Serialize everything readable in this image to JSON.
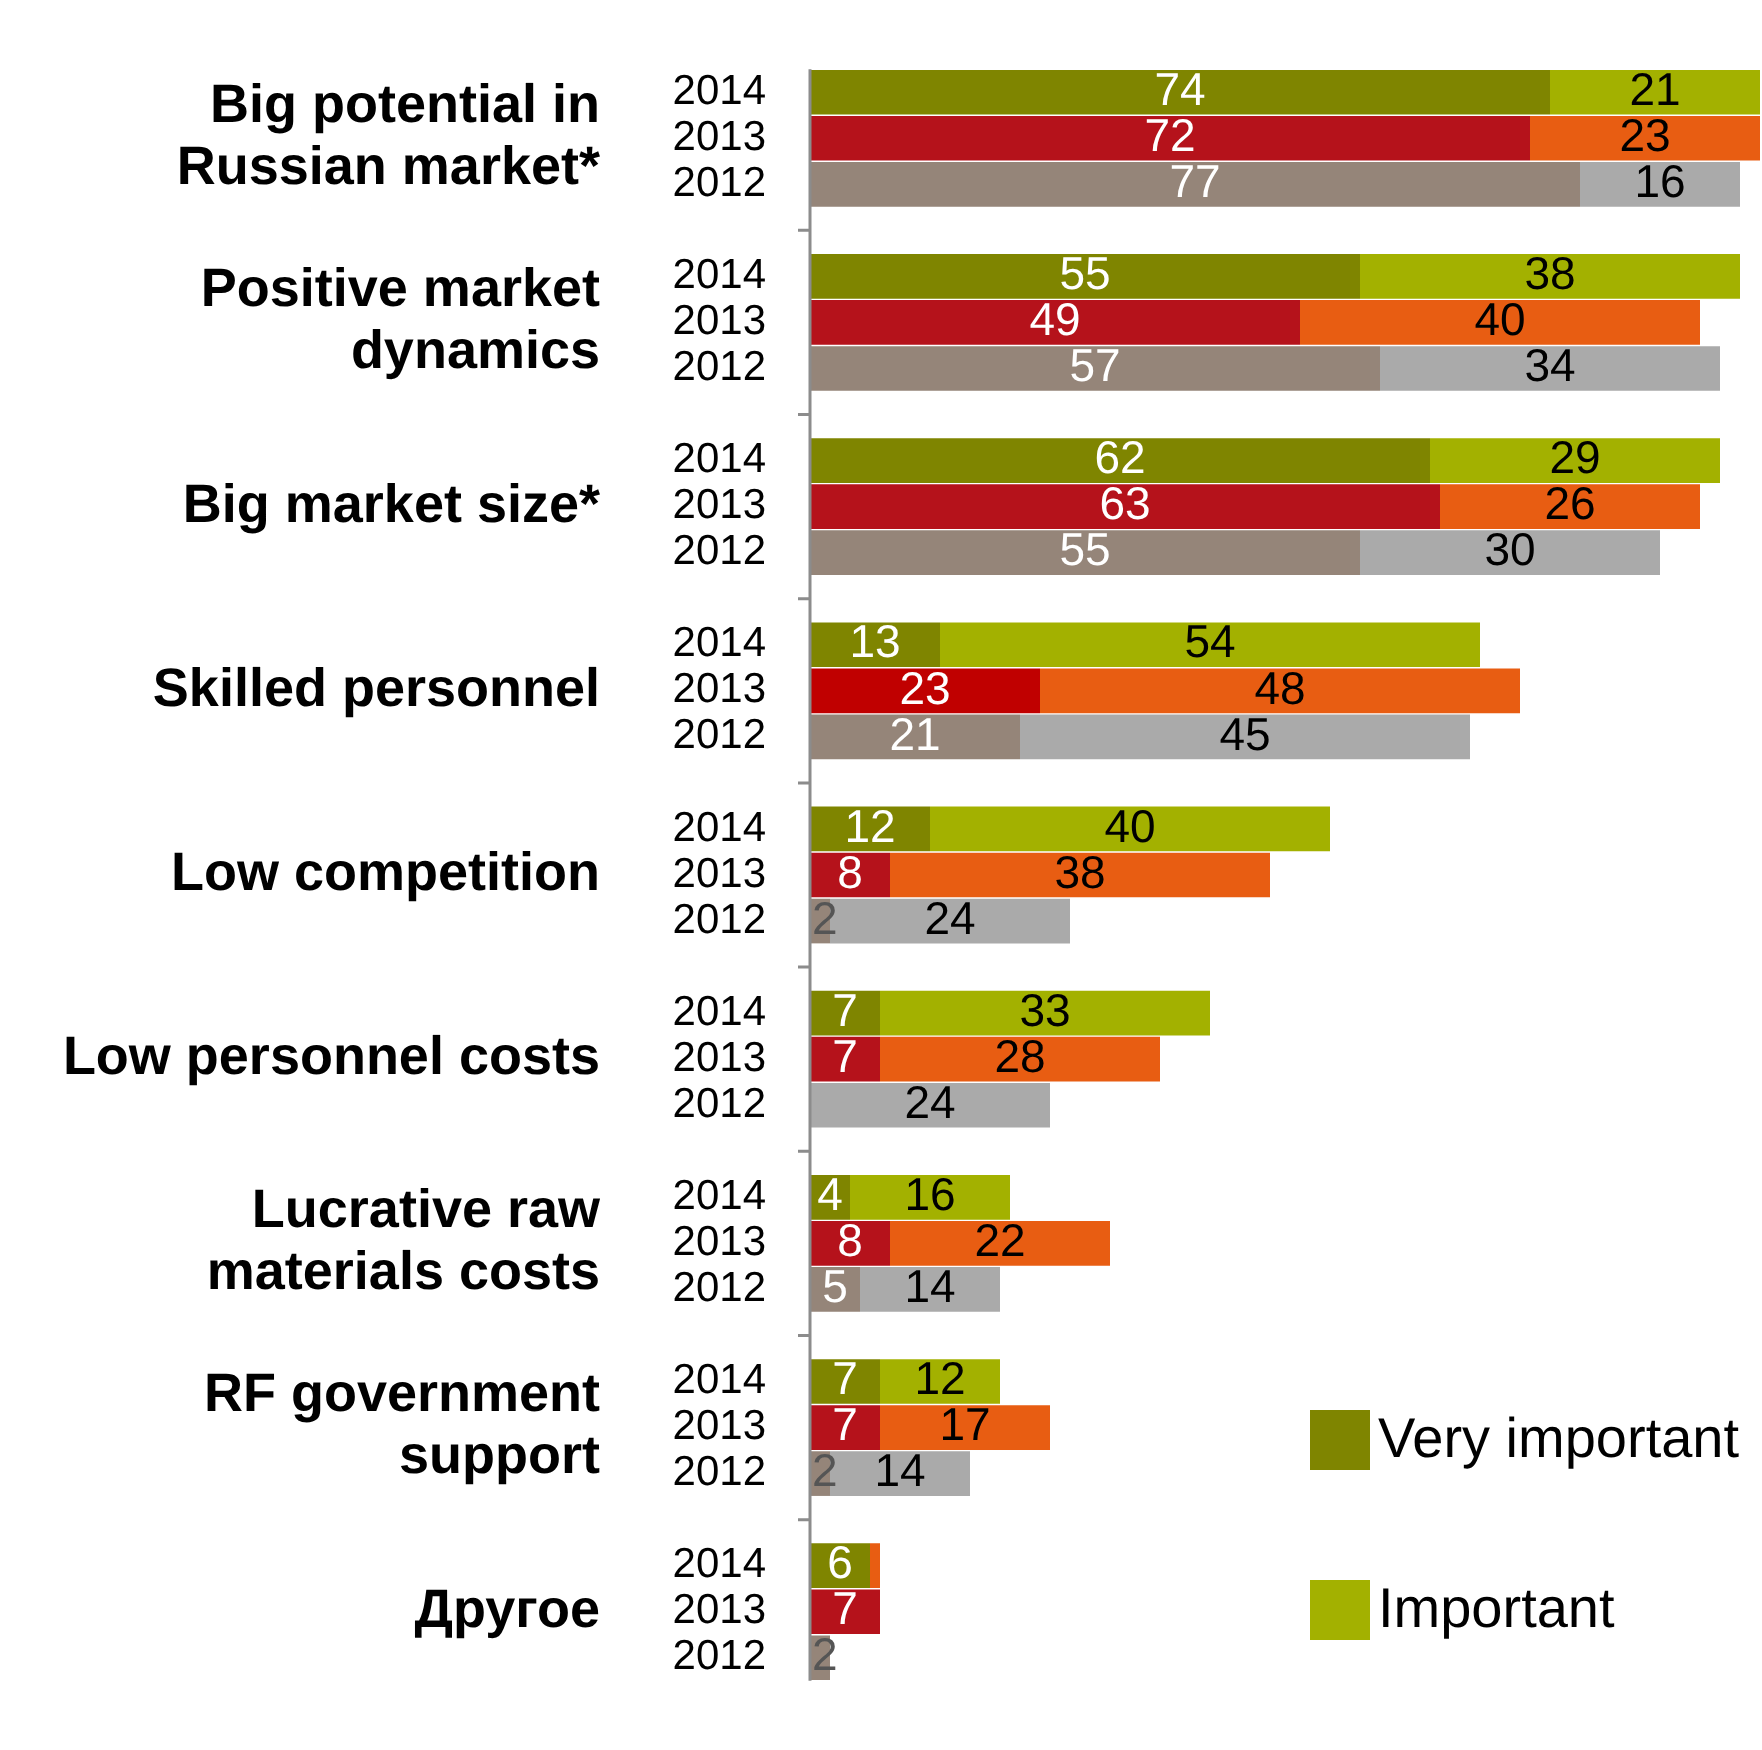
{
  "chart_data": {
    "type": "bar",
    "orientation": "horizontal",
    "stacked": true,
    "legend": "bottom right",
    "categories": [
      "2014",
      "2013",
      "2012",
      null,
      "2014",
      "2013",
      "2012",
      null,
      "2014",
      "2013",
      "2012",
      null,
      "2014",
      "2013",
      "2012",
      null,
      "2014",
      "2013",
      "2012",
      null,
      "2014",
      "2013",
      "2012",
      null,
      "2014",
      "2013",
      "2012",
      null,
      "2014",
      "2013",
      "2012",
      null,
      "2014",
      "2013",
      "2012"
    ],
    "annotations": [
      "Big potential in Russian market*",
      "Positive market dynamics",
      "Big market size*",
      "Skilled personnel",
      "Low competition",
      "Low personnel costs",
      "Lucrative raw materials costs",
      "RF government support",
      "Другое"
    ],
    "series": [
      {
        "name": "Very important",
        "color": "#7f8500",
        "values": [
          74,
          72,
          77,
          null,
          55,
          49,
          57,
          null,
          62,
          63,
          55,
          null,
          13,
          23,
          21,
          null,
          12,
          8,
          2,
          null,
          7,
          7,
          null,
          null,
          4,
          8,
          5,
          null,
          7,
          7,
          2,
          null,
          6,
          7,
          2
        ],
        "colors": [
          "#7f8500",
          "#b5121b",
          "#958579",
          null,
          "#7f8500",
          "#b5121b",
          "#958579",
          null,
          "#7f8500",
          "#b5121b",
          "#958579",
          null,
          "#7f8500",
          "#c00000",
          "#958579",
          null,
          "#7f8500",
          "#b5121b",
          "#958579",
          null,
          "#7f8500",
          "#b5121b",
          "#958579",
          null,
          "#7f8500",
          "#b5121b",
          "#958579",
          null,
          "#7f8500",
          "#b5121b",
          "#958579",
          null,
          "#7f8500",
          "#b5121b",
          "#958579"
        ],
        "value_labels": [
          "74",
          "72",
          "77",
          null,
          "55",
          "49",
          "57",
          null,
          "62",
          "63",
          "55",
          null,
          "13",
          "23",
          "21",
          null,
          "12",
          "8",
          "2",
          null,
          "7",
          "7",
          null,
          null,
          "4",
          "8",
          "5",
          null,
          "7",
          "7",
          "2",
          null,
          "6",
          "7",
          "2"
        ]
      },
      {
        "name": "Important",
        "color": "#a3b100",
        "values": [
          21,
          23,
          16,
          null,
          38,
          40,
          34,
          null,
          29,
          26,
          30,
          null,
          54,
          48,
          45,
          null,
          40,
          38,
          24,
          null,
          33,
          28,
          24,
          null,
          16,
          22,
          14,
          null,
          12,
          17,
          14,
          null,
          1,
          null,
          null
        ],
        "colors": [
          "#a3b100",
          "#e85d12",
          "#aaaaaa",
          null,
          "#a3b100",
          "#e85d12",
          "#aaaaaa",
          null,
          "#a3b100",
          "#e85d12",
          "#aaaaaa",
          null,
          "#a3b100",
          "#e85d12",
          "#aaaaaa",
          null,
          "#a3b100",
          "#e85d12",
          "#aaaaaa",
          null,
          "#a3b100",
          "#e85d12",
          "#aaaaaa",
          null,
          "#a3b100",
          "#e85d12",
          "#aaaaaa",
          null,
          "#a3b100",
          "#e85d12",
          "#aaaaaa",
          null,
          "#e85d12",
          null,
          null
        ],
        "value_labels": [
          "21",
          "23",
          "16",
          null,
          "38",
          "40",
          "34",
          null,
          "29",
          "26",
          "30",
          null,
          "54",
          "48",
          "45",
          null,
          "40",
          "38",
          "24",
          null,
          "33",
          "28",
          "24",
          null,
          "16",
          "22",
          "14",
          null,
          "12",
          "17",
          "14",
          null,
          null,
          null,
          null
        ]
      }
    ]
  }
}
